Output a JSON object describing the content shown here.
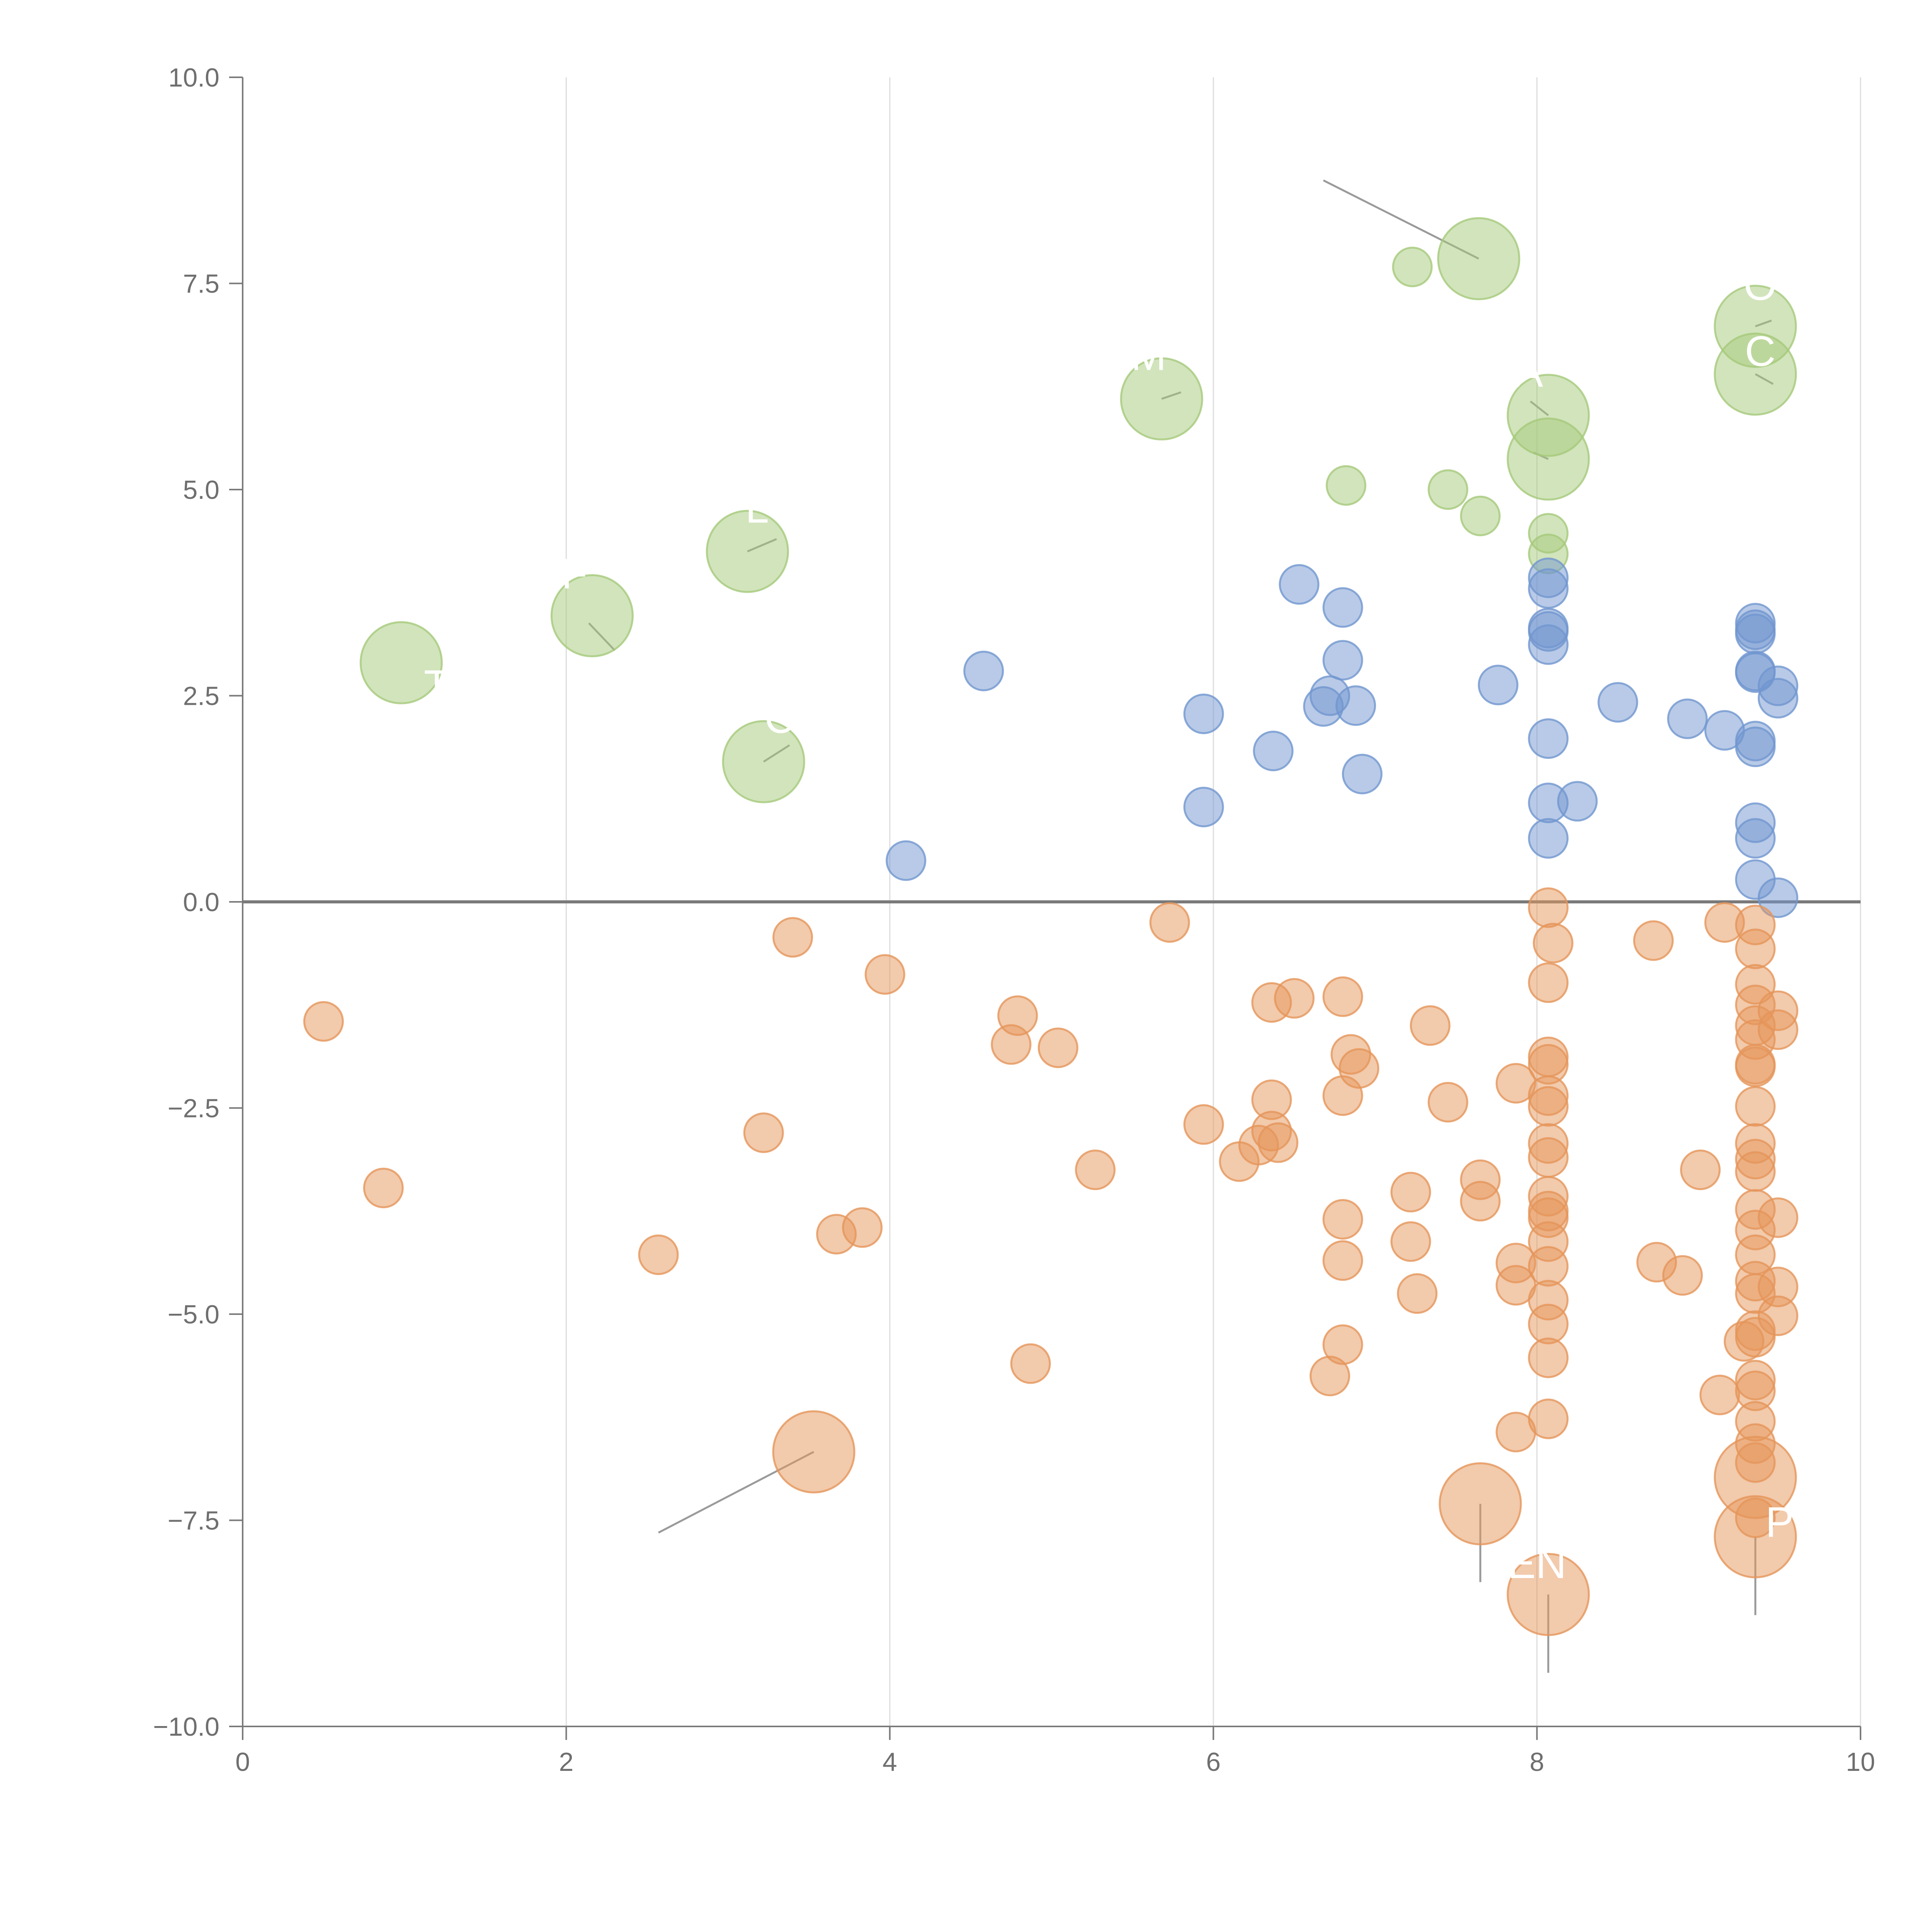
{
  "chart_data": {
    "type": "scatter",
    "title": "",
    "xlabel": "",
    "ylabel": "",
    "xlim": [
      0,
      10
    ],
    "ylim": [
      -10,
      10
    ],
    "x_ticks": [
      "0",
      "2",
      "4",
      "6",
      "8",
      "10"
    ],
    "y_ticks": [
      "−10.0",
      "−7.5",
      "−5.0",
      "−2.5",
      "0.0",
      "2.5",
      "5.0",
      "7.5",
      "10.0"
    ],
    "x_tick_values": [
      0,
      2,
      4,
      6,
      8,
      10
    ],
    "y_tick_values": [
      -10,
      -7.5,
      -5,
      -2.5,
      0,
      2.5,
      5,
      7.5,
      10
    ],
    "grid": "vertical",
    "reference_line_y": 0,
    "colors": {
      "green": "#a5c97a",
      "blue": "#7196cf",
      "orange": "#e5955a",
      "axis": "#7a7a7a",
      "grid": "#dddddd",
      "leader": "#9a9a9a"
    },
    "series": [
      {
        "name": "green",
        "color": "#a5c97a",
        "points": [
          [
            0.98,
            2.9,
            3
          ],
          [
            2.16,
            3.47,
            3
          ],
          [
            3.12,
            4.25,
            3
          ],
          [
            3.22,
            1.7,
            3
          ],
          [
            5.68,
            6.1,
            3
          ],
          [
            7.64,
            7.8,
            3
          ],
          [
            7.23,
            7.7,
            1
          ],
          [
            6.82,
            5.05,
            1
          ],
          [
            7.45,
            5.0,
            1
          ],
          [
            7.65,
            4.68,
            1
          ],
          [
            8.07,
            5.9,
            3
          ],
          [
            8.07,
            5.37,
            3
          ],
          [
            8.07,
            4.47,
            1
          ],
          [
            8.07,
            4.22,
            1
          ],
          [
            9.35,
            6.98,
            3
          ],
          [
            9.35,
            6.4,
            3
          ]
        ]
      },
      {
        "name": "blue",
        "color": "#7196cf",
        "points": [
          [
            4.1,
            0.5,
            1
          ],
          [
            4.58,
            2.8,
            1
          ],
          [
            5.94,
            2.28,
            1
          ],
          [
            5.94,
            1.15,
            1
          ],
          [
            6.37,
            1.83,
            1
          ],
          [
            6.53,
            3.85,
            1
          ],
          [
            6.68,
            2.37,
            1
          ],
          [
            6.72,
            2.5,
            1
          ],
          [
            6.8,
            3.57,
            1
          ],
          [
            6.8,
            2.93,
            1
          ],
          [
            6.88,
            2.38,
            1
          ],
          [
            6.92,
            1.55,
            1
          ],
          [
            7.76,
            2.63,
            1
          ],
          [
            8.07,
            3.93,
            1
          ],
          [
            8.07,
            3.8,
            1
          ],
          [
            8.07,
            3.32,
            1
          ],
          [
            8.07,
            3.28,
            1
          ],
          [
            8.07,
            3.12,
            1
          ],
          [
            8.07,
            1.98,
            1
          ],
          [
            8.07,
            1.2,
            1
          ],
          [
            8.07,
            0.77,
            1
          ],
          [
            8.25,
            1.22,
            1
          ],
          [
            8.5,
            2.42,
            1
          ],
          [
            8.93,
            2.22,
            1
          ],
          [
            9.16,
            2.08,
            1
          ],
          [
            9.35,
            3.38,
            1
          ],
          [
            9.35,
            3.3,
            1
          ],
          [
            9.35,
            3.25,
            1
          ],
          [
            9.35,
            2.8,
            1
          ],
          [
            9.35,
            2.78,
            1
          ],
          [
            9.35,
            1.95,
            1
          ],
          [
            9.35,
            1.88,
            1
          ],
          [
            9.35,
            0.96,
            1
          ],
          [
            9.35,
            0.77,
            1
          ],
          [
            9.35,
            0.27,
            1
          ],
          [
            9.49,
            2.62,
            1
          ],
          [
            9.49,
            2.47,
            1
          ],
          [
            9.49,
            0.05,
            1
          ]
        ]
      },
      {
        "name": "orange",
        "color": "#e5955a",
        "points": [
          [
            0.5,
            -1.45,
            1
          ],
          [
            0.87,
            -3.47,
            1
          ],
          [
            2.57,
            -4.28,
            1
          ],
          [
            3.22,
            -2.8,
            1
          ],
          [
            3.4,
            -0.43,
            1
          ],
          [
            3.67,
            -4.03,
            1
          ],
          [
            3.83,
            -3.95,
            1
          ],
          [
            3.97,
            -0.88,
            1
          ],
          [
            3.53,
            -6.67,
            3
          ],
          [
            4.75,
            -1.73,
            1
          ],
          [
            4.79,
            -1.38,
            1
          ],
          [
            4.87,
            -5.6,
            1
          ],
          [
            5.04,
            -1.77,
            1
          ],
          [
            5.27,
            -3.25,
            1
          ],
          [
            5.73,
            -0.25,
            1
          ],
          [
            5.94,
            -2.7,
            1
          ],
          [
            6.16,
            -3.15,
            1
          ],
          [
            6.28,
            -2.95,
            1
          ],
          [
            6.36,
            -2.4,
            1
          ],
          [
            6.36,
            -1.22,
            1
          ],
          [
            6.36,
            -2.78,
            1
          ],
          [
            6.4,
            -2.92,
            1
          ],
          [
            6.5,
            -1.17,
            1
          ],
          [
            6.72,
            -5.75,
            1
          ],
          [
            6.8,
            -1.15,
            1
          ],
          [
            6.8,
            -2.35,
            1
          ],
          [
            6.8,
            -3.85,
            1
          ],
          [
            6.8,
            -4.35,
            1
          ],
          [
            6.8,
            -5.37,
            1
          ],
          [
            6.85,
            -1.85,
            1
          ],
          [
            6.9,
            -2.02,
            1
          ],
          [
            7.22,
            -3.52,
            1
          ],
          [
            7.22,
            -4.12,
            1
          ],
          [
            7.26,
            -4.75,
            1
          ],
          [
            7.34,
            -1.5,
            1
          ],
          [
            7.45,
            -2.43,
            1
          ],
          [
            7.65,
            -3.37,
            1
          ],
          [
            7.65,
            -3.63,
            1
          ],
          [
            7.65,
            -7.3,
            3
          ],
          [
            7.87,
            -2.2,
            1
          ],
          [
            7.87,
            -4.38,
            1
          ],
          [
            7.87,
            -4.65,
            1
          ],
          [
            7.87,
            -6.43,
            1
          ],
          [
            8.07,
            -0.07,
            1
          ],
          [
            8.1,
            -0.5,
            1
          ],
          [
            8.07,
            -0.98,
            1
          ],
          [
            8.07,
            -1.88,
            1
          ],
          [
            8.07,
            -1.97,
            1
          ],
          [
            8.07,
            -2.35,
            1
          ],
          [
            8.07,
            -2.48,
            1
          ],
          [
            8.07,
            -2.93,
            1
          ],
          [
            8.07,
            -3.1,
            1
          ],
          [
            8.07,
            -3.57,
            1
          ],
          [
            8.07,
            -3.75,
            1
          ],
          [
            8.07,
            -3.83,
            1
          ],
          [
            8.07,
            -4.12,
            1
          ],
          [
            8.07,
            -4.42,
            1
          ],
          [
            8.07,
            -4.83,
            1
          ],
          [
            8.07,
            -5.12,
            1
          ],
          [
            8.07,
            -5.53,
            1
          ],
          [
            8.07,
            -6.27,
            1
          ],
          [
            8.07,
            -8.4,
            3
          ],
          [
            8.72,
            -0.47,
            1
          ],
          [
            8.74,
            -4.37,
            1
          ],
          [
            8.9,
            -4.53,
            1
          ],
          [
            9.01,
            -3.25,
            1
          ],
          [
            9.13,
            -5.98,
            1
          ],
          [
            9.16,
            -0.25,
            1
          ],
          [
            9.28,
            -5.33,
            1
          ],
          [
            9.35,
            -0.28,
            1
          ],
          [
            9.35,
            -0.57,
            1
          ],
          [
            9.35,
            -1.0,
            1
          ],
          [
            9.35,
            -1.25,
            1
          ],
          [
            9.35,
            -1.5,
            1
          ],
          [
            9.35,
            -1.67,
            1
          ],
          [
            9.35,
            -1.97,
            1
          ],
          [
            9.35,
            -2.0,
            1
          ],
          [
            9.35,
            -2.48,
            1
          ],
          [
            9.35,
            -2.93,
            1
          ],
          [
            9.35,
            -3.12,
            1
          ],
          [
            9.35,
            -3.27,
            1
          ],
          [
            9.35,
            -3.73,
            1
          ],
          [
            9.35,
            -3.98,
            1
          ],
          [
            9.35,
            -4.28,
            1
          ],
          [
            9.35,
            -4.6,
            1
          ],
          [
            9.35,
            -4.75,
            1
          ],
          [
            9.35,
            -5.2,
            1
          ],
          [
            9.35,
            -5.28,
            1
          ],
          [
            9.35,
            -5.8,
            1
          ],
          [
            9.35,
            -5.93,
            1
          ],
          [
            9.35,
            -6.3,
            1
          ],
          [
            9.35,
            -6.57,
            1
          ],
          [
            9.35,
            -6.8,
            1
          ],
          [
            9.35,
            -7.47,
            1
          ],
          [
            9.35,
            -6.98,
            3
          ],
          [
            9.35,
            -7.7,
            3
          ],
          [
            9.49,
            -1.32,
            1
          ],
          [
            9.49,
            -1.55,
            1
          ],
          [
            9.49,
            -3.83,
            1
          ],
          [
            9.49,
            -4.67,
            1
          ],
          [
            9.49,
            -5.02,
            1
          ]
        ]
      }
    ],
    "annotations": [
      {
        "text": "T",
        "x": 0.98,
        "y": 2.9,
        "color": "green",
        "lx": 1.2,
        "ly": 2.45
      },
      {
        "text": "F",
        "x": 2.16,
        "y": 3.47,
        "color": "green",
        "lx": 2.05,
        "ly": 3.8
      },
      {
        "text": "L",
        "x": 3.12,
        "y": 4.25,
        "color": "green",
        "lx": 3.18,
        "ly": 4.6
      },
      {
        "text": "C",
        "x": 3.22,
        "y": 1.7,
        "color": "green",
        "lx": 3.32,
        "ly": 2.05
      },
      {
        "text": "M",
        "x": 5.68,
        "y": 6.1,
        "color": "green",
        "lx": 5.6,
        "ly": 6.45
      },
      {
        "text": "A",
        "x": 8.07,
        "y": 5.9,
        "color": "green",
        "lx": 7.95,
        "ly": 6.25
      },
      {
        "text": "O",
        "x": 9.35,
        "y": 6.98,
        "color": "green",
        "lx": 9.38,
        "ly": 7.3
      },
      {
        "text": "C",
        "x": 9.35,
        "y": 6.4,
        "color": "green",
        "lx": 9.38,
        "ly": 6.5
      },
      {
        "text": "EN",
        "x": 8.07,
        "y": -8.4,
        "color": "orange",
        "lx": 8.0,
        "ly": -8.2
      },
      {
        "text": "P",
        "x": 9.35,
        "y": -7.7,
        "color": "orange",
        "lx": 9.5,
        "ly": -7.7
      }
    ],
    "leader_lines": [
      [
        6.68,
        8.75,
        7.64,
        7.8
      ],
      [
        2.57,
        -7.65,
        3.53,
        -6.67
      ],
      [
        7.65,
        -8.25,
        7.65,
        -7.3
      ],
      [
        8.07,
        -9.35,
        8.07,
        -8.4
      ],
      [
        9.35,
        -8.65,
        9.35,
        -7.7
      ],
      [
        2.14,
        3.38,
        2.3,
        3.05
      ],
      [
        3.12,
        4.25,
        3.3,
        4.4
      ],
      [
        3.22,
        1.7,
        3.38,
        1.9
      ],
      [
        5.68,
        6.1,
        5.8,
        6.18
      ],
      [
        8.07,
        5.9,
        7.96,
        6.07
      ],
      [
        8.07,
        5.37,
        7.98,
        5.45
      ],
      [
        9.35,
        6.98,
        9.45,
        7.05
      ],
      [
        9.35,
        6.4,
        9.46,
        6.28
      ]
    ]
  }
}
